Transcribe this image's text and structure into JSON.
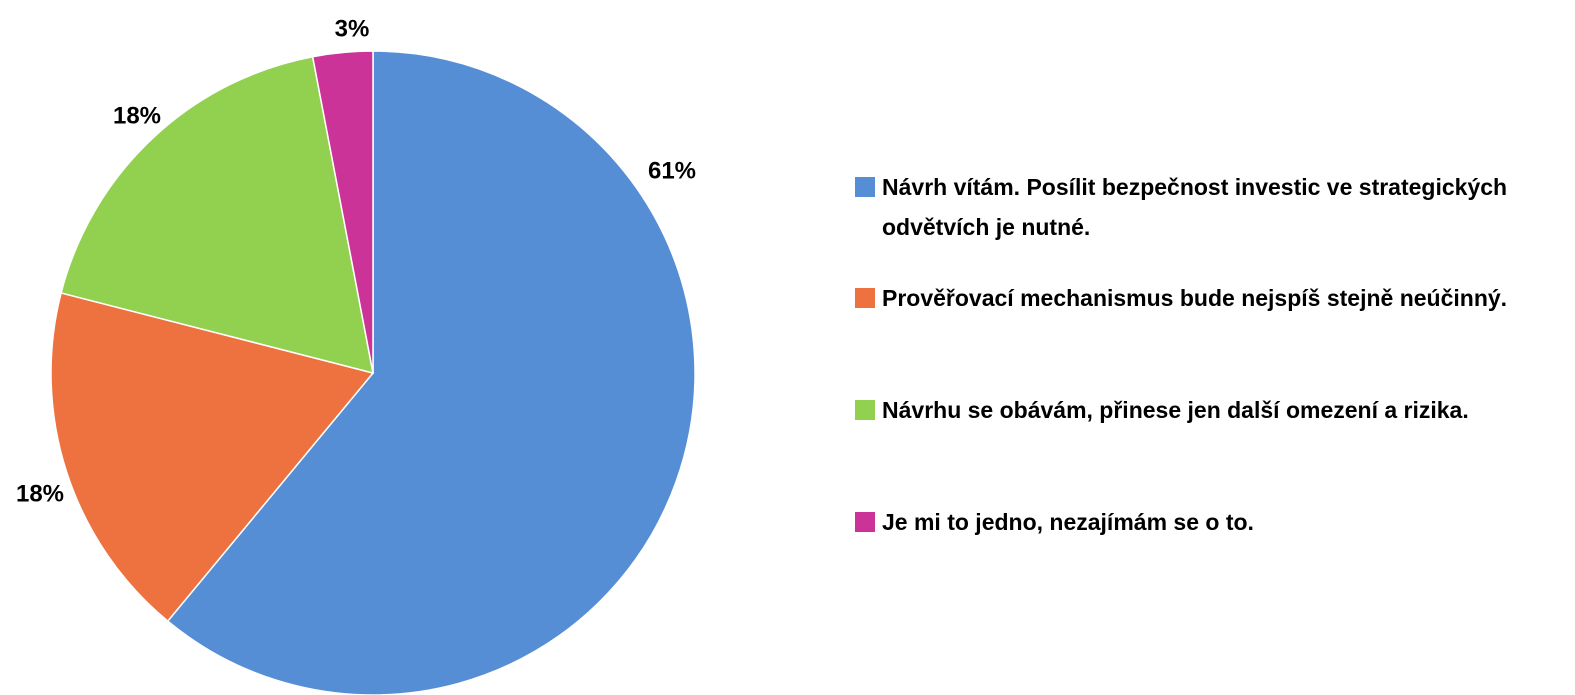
{
  "chart_data": {
    "type": "pie",
    "categories": [
      "Návrh vítám. Posílit bezpečnost investic ve strategických odvětvích je nutné.",
      "Prověřovací mechanismus bude nejspíš stejně neúčinný.",
      "Návrhu se obávám, přinese jen další omezení a rizika.",
      "Je mi to jedno, nezajímám se o to."
    ],
    "values": [
      61,
      18,
      18,
      3
    ],
    "value_labels": [
      "61%",
      "18%",
      "18%",
      "3%"
    ],
    "colors": [
      "#558ed5",
      "#ed7240",
      "#92d050",
      "#cc3399"
    ],
    "legend": "right"
  }
}
